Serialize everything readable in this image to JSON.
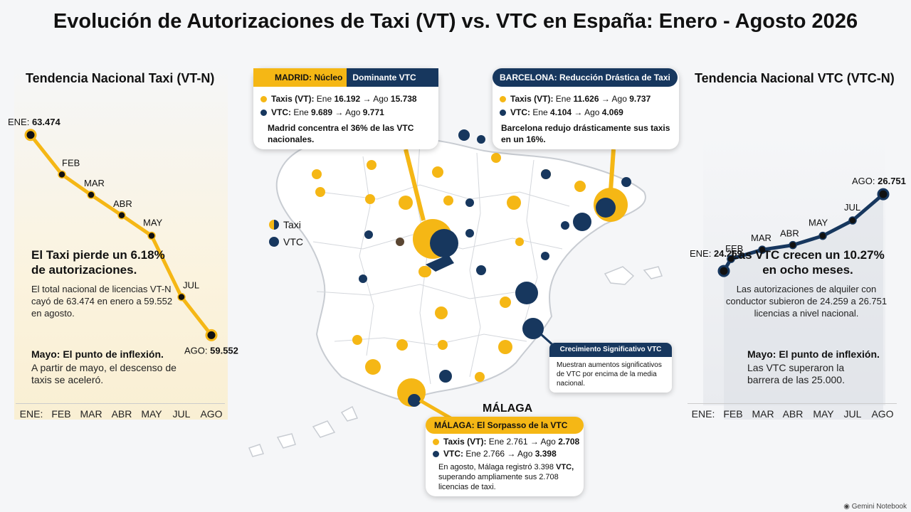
{
  "title": "Evolución de Autorizaciones de Taxi (VT) vs. VTC en España: Enero - Agosto 2026",
  "colors": {
    "taxi": "#f5b715",
    "vtc": "#17375e"
  },
  "left_panel": {
    "title": "Tendencia Nacional Taxi (VT-N)",
    "headline": "El Taxi pierde un 6.18% de autorizaciones.",
    "body": "El total nacional de licencias VT-N cayó de 63.474 en enero a 59.552 en agosto.",
    "note_title": "Mayo: El punto de inflexión.",
    "note_body": "A partir de mayo, el descenso de taxis se aceleró."
  },
  "right_panel": {
    "title": "Tendencia Nacional VTC (VTC-N)",
    "headline": "Las VTC crecen un 10.27% en ocho meses.",
    "body": "Las autorizaciones de alquiler con conductor subieron de 24.259 a 26.751 licencias a nivel nacional.",
    "note_title": "Mayo: El punto de inflexión.",
    "note_body": "Las VTC superaron la barrera de las 25.000."
  },
  "chart_data": [
    {
      "type": "line",
      "title": "Tendencia Nacional Taxi (VT-N)",
      "categories": [
        "ENE:",
        "FEB",
        "MAR",
        "ABR",
        "MAY",
        "JUL",
        "AGO"
      ],
      "point_labels": [
        "ENE:",
        "FEB",
        "MAR",
        "ABR",
        "MAY",
        "JUL",
        "AGO:"
      ],
      "series": [
        {
          "values": [
            63474,
            62700,
            62300,
            61900,
            61500,
            60300,
            59552
          ]
        }
      ],
      "labeled": {
        "first": "63.474",
        "last": "59.552"
      },
      "ylim": [
        59000,
        64000
      ],
      "grid": false
    },
    {
      "type": "line",
      "title": "Tendencia Nacional VTC (VTC-N)",
      "categories": [
        "ENE:",
        "FEB",
        "MAR",
        "ABR",
        "MAY",
        "JUL",
        "AGO"
      ],
      "point_labels": [
        "ENE:",
        "FEB",
        "MAR",
        "ABR",
        "MAY",
        "JUL",
        "AGO:"
      ],
      "series": [
        {
          "values": [
            24259,
            24650,
            24950,
            25100,
            25400,
            25900,
            26751
          ]
        }
      ],
      "labeled": {
        "first": "24.259",
        "last": "26.751"
      },
      "ylim": [
        23800,
        27100
      ],
      "grid": false
    }
  ],
  "map": {
    "legend": {
      "taxi": "Taxi",
      "vtc": "VTC"
    },
    "madrid": {
      "label_a": "MADRID: Núcleo",
      "label_b": "Dominante VTC",
      "taxi_pre": "Taxis (VT):",
      "taxi_mid": " Ene ",
      "taxi_jan": "16.192",
      "taxi_arrow": " → Ago ",
      "taxi_aug": "15.738",
      "vtc_pre": "VTC:",
      "vtc_mid": " Ene ",
      "vtc_jan": "9.689",
      "vtc_arrow": " → Ago ",
      "vtc_aug": "9.771",
      "note": "Madrid concentra el 36% de las VTC nacionales."
    },
    "barcelona": {
      "label": "BARCELONA: Reducción Drástica de Taxi",
      "taxi_pre": "Taxis (VT):",
      "taxi_mid": " Ene ",
      "taxi_jan": "11.626",
      "taxi_arrow": " → Ago ",
      "taxi_aug": "9.737",
      "vtc_pre": "VTC:",
      "vtc_mid": " Ene ",
      "vtc_jan": "4.104",
      "vtc_arrow": " → Ago ",
      "vtc_aug": "4.069",
      "note": "Barcelona redujo drásticamente sus taxis en un 16%."
    },
    "crecimiento": {
      "label": "Crecimiento Significativo VTC",
      "note": "Muestran aumentos significativos de VTC por encima de la media nacional."
    },
    "malaga": {
      "city": "MÁLAGA",
      "label": "MÁLAGA: El Sorpasso de la VTC",
      "taxi_pre": "Taxis (VT):",
      "taxi_mid": " Ene 2.761 → Ago ",
      "taxi_aug": "2.708",
      "vtc_pre": "VTC:",
      "vtc_mid": " Ene 2.766 → Ago ",
      "vtc_aug": "3.398",
      "note_1": "En agosto, Málaga registró 3.398",
      "note_2": "VTC,",
      "note_3": " superando ampliamente sus 2.708 licencias de taxi."
    }
  },
  "footer": "Gemini Notebook"
}
